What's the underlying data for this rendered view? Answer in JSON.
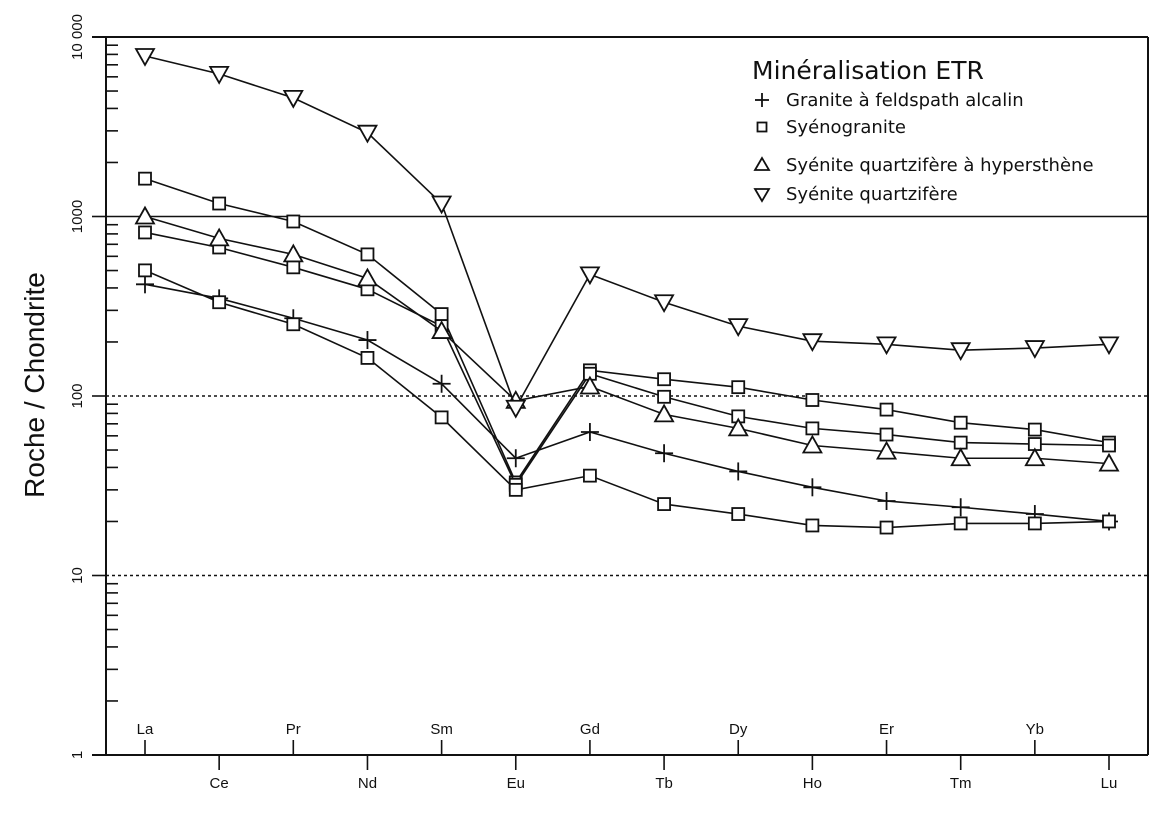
{
  "chart_data": {
    "type": "line",
    "title": "",
    "xlabel": "",
    "ylabel": "Roche / Chondrite",
    "yscale": "log",
    "ylim": [
      1,
      10000
    ],
    "yticks": [
      1,
      10,
      100,
      1000,
      10000
    ],
    "ytick_labels": [
      "1",
      "10",
      "100",
      "1000",
      "10 000"
    ],
    "grid_lines": [
      {
        "value": 1000,
        "style": "solid"
      },
      {
        "value": 100,
        "style": "dotted"
      },
      {
        "value": 10,
        "style": "dotted"
      }
    ],
    "categories": [
      "La",
      "Ce",
      "Pr",
      "Nd",
      "Sm",
      "Eu",
      "Gd",
      "Tb",
      "Dy",
      "Ho",
      "Er",
      "Tm",
      "Yb",
      "Lu"
    ],
    "legend": {
      "title": "Minéralisation ETR",
      "placement": "top-right"
    },
    "series": [
      {
        "name": "Granite à feldspath alcalin",
        "marker": "plus",
        "values": [
          419,
          350,
          271,
          205,
          117,
          45,
          63,
          48,
          38,
          31,
          26,
          24,
          22,
          20
        ]
      },
      {
        "name": "Syénogranite",
        "marker": "square",
        "show_in_legend": true,
        "values": [
          1625,
          1181,
          938,
          615,
          286,
          33,
          139,
          124,
          112,
          95,
          84,
          71,
          65,
          55
        ]
      },
      {
        "name": "Syénogranite",
        "marker": "square",
        "show_in_legend": false,
        "values": [
          815,
          672,
          521,
          393,
          245,
          32,
          133,
          99,
          77,
          66,
          61,
          55,
          54,
          53
        ]
      },
      {
        "name": "Syénogranite",
        "marker": "square",
        "show_in_legend": false,
        "values": [
          501,
          333,
          251,
          163,
          76,
          30,
          36,
          25,
          22,
          19,
          18.5,
          19.5,
          19.5,
          20
        ]
      },
      {
        "name": "Syénite quartzifère à hypersthène",
        "marker": "triangle-up",
        "values": [
          1000,
          755,
          615,
          452,
          230,
          94,
          113,
          79,
          66,
          53,
          49,
          45,
          45,
          42
        ]
      },
      {
        "name": "Syénite quartzifère",
        "marker": "triangle-down",
        "values": [
          7840,
          6230,
          4580,
          2930,
          1181,
          86,
          476,
          333,
          245,
          202,
          194,
          180,
          185,
          194
        ]
      }
    ],
    "legend_entries": [
      {
        "marker": "plus",
        "label": "Granite à feldspath alcalin"
      },
      {
        "marker": "square",
        "label": "Syénogranite"
      },
      {
        "marker": "triangle-up",
        "label": "Syénite quartzifère à hypersthène"
      },
      {
        "marker": "triangle-down",
        "label": "Syénite quartzifère"
      }
    ]
  }
}
